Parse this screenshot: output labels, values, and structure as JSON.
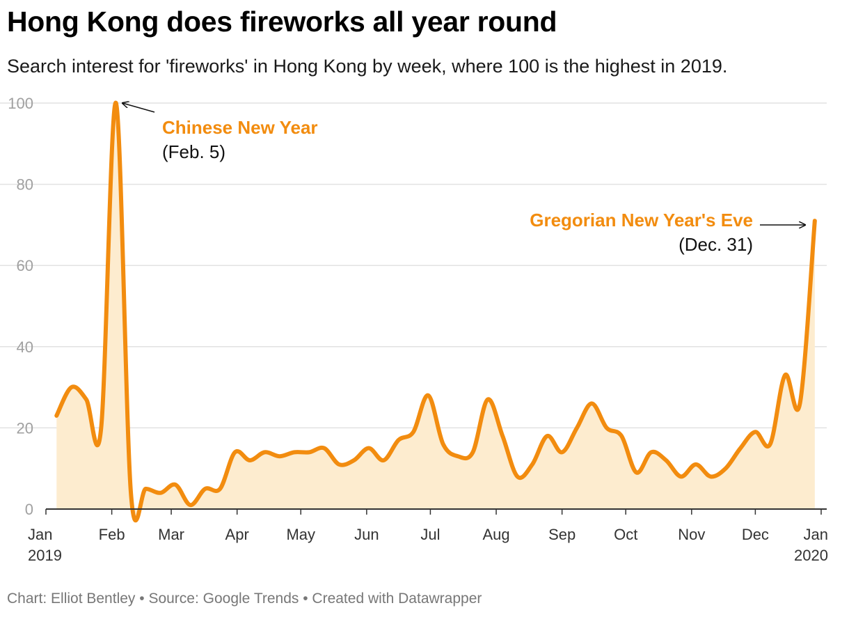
{
  "header": {
    "title": "Hong Kong does fireworks all year round",
    "subtitle": "Search interest for 'fireworks' in Hong Kong by week, where 100 is the highest in 2019."
  },
  "footer": {
    "credit": "Chart: Elliot Bentley • Source: Google Trends • Created with Datawrapper"
  },
  "colors": {
    "line": "#f28c0f",
    "area": "#fdeccf",
    "grid": "#e2e2e2",
    "annotation_title": "#f28c0f"
  },
  "chart_data": {
    "type": "area",
    "title": "Hong Kong does fireworks all year round",
    "subtitle": "Search interest for 'fireworks' in Hong Kong by week, where 100 is the highest in 2019.",
    "xlabel": "",
    "ylabel": "",
    "ylim": [
      0,
      100
    ],
    "yticks": [
      0,
      20,
      40,
      60,
      80,
      100
    ],
    "grid": true,
    "legend": "none",
    "xticks": [
      {
        "label": "Jan",
        "sublabel": "2019",
        "date": "2019-01-01"
      },
      {
        "label": "Feb",
        "date": "2019-02-01"
      },
      {
        "label": "Mar",
        "date": "2019-03-01"
      },
      {
        "label": "Apr",
        "date": "2019-04-01"
      },
      {
        "label": "May",
        "date": "2019-05-01"
      },
      {
        "label": "Jun",
        "date": "2019-06-01"
      },
      {
        "label": "Jul",
        "date": "2019-07-01"
      },
      {
        "label": "Aug",
        "date": "2019-08-01"
      },
      {
        "label": "Sep",
        "date": "2019-09-01"
      },
      {
        "label": "Oct",
        "date": "2019-10-01"
      },
      {
        "label": "Nov",
        "date": "2019-11-01"
      },
      {
        "label": "Dec",
        "date": "2019-12-01"
      },
      {
        "label": "Jan",
        "sublabel": "2020",
        "date": "2020-01-01"
      }
    ],
    "x": [
      "2019-01-06",
      "2019-01-13",
      "2019-01-20",
      "2019-01-27",
      "2019-02-03",
      "2019-02-10",
      "2019-02-17",
      "2019-02-24",
      "2019-03-03",
      "2019-03-10",
      "2019-03-17",
      "2019-03-24",
      "2019-03-31",
      "2019-04-07",
      "2019-04-14",
      "2019-04-21",
      "2019-04-28",
      "2019-05-05",
      "2019-05-12",
      "2019-05-19",
      "2019-05-26",
      "2019-06-02",
      "2019-06-09",
      "2019-06-16",
      "2019-06-23",
      "2019-06-30",
      "2019-07-07",
      "2019-07-14",
      "2019-07-21",
      "2019-07-28",
      "2019-08-04",
      "2019-08-11",
      "2019-08-18",
      "2019-08-25",
      "2019-09-01",
      "2019-09-08",
      "2019-09-15",
      "2019-09-22",
      "2019-09-29",
      "2019-10-06",
      "2019-10-13",
      "2019-10-20",
      "2019-10-27",
      "2019-11-03",
      "2019-11-10",
      "2019-11-17",
      "2019-11-24",
      "2019-12-01",
      "2019-12-08",
      "2019-12-15",
      "2019-12-22",
      "2019-12-29"
    ],
    "series": [
      {
        "values": [
          23,
          30,
          27,
          20,
          100,
          4,
          5,
          4,
          6,
          1,
          5,
          5,
          14,
          12,
          14,
          13,
          14,
          14,
          15,
          11,
          12,
          15,
          12,
          17,
          19,
          28,
          16,
          13,
          14,
          27,
          18,
          8,
          11,
          18,
          14,
          20,
          26,
          20,
          18,
          9,
          14,
          12,
          8,
          11,
          8,
          10,
          15,
          19,
          16,
          33,
          26,
          71
        ]
      }
    ],
    "annotations": [
      {
        "title": "Chinese New Year",
        "note": "(Feb. 5)",
        "date": "2019-02-05"
      },
      {
        "title": "Gregorian New Year's Eve",
        "note": "(Dec. 31)",
        "date": "2019-12-31"
      }
    ]
  }
}
